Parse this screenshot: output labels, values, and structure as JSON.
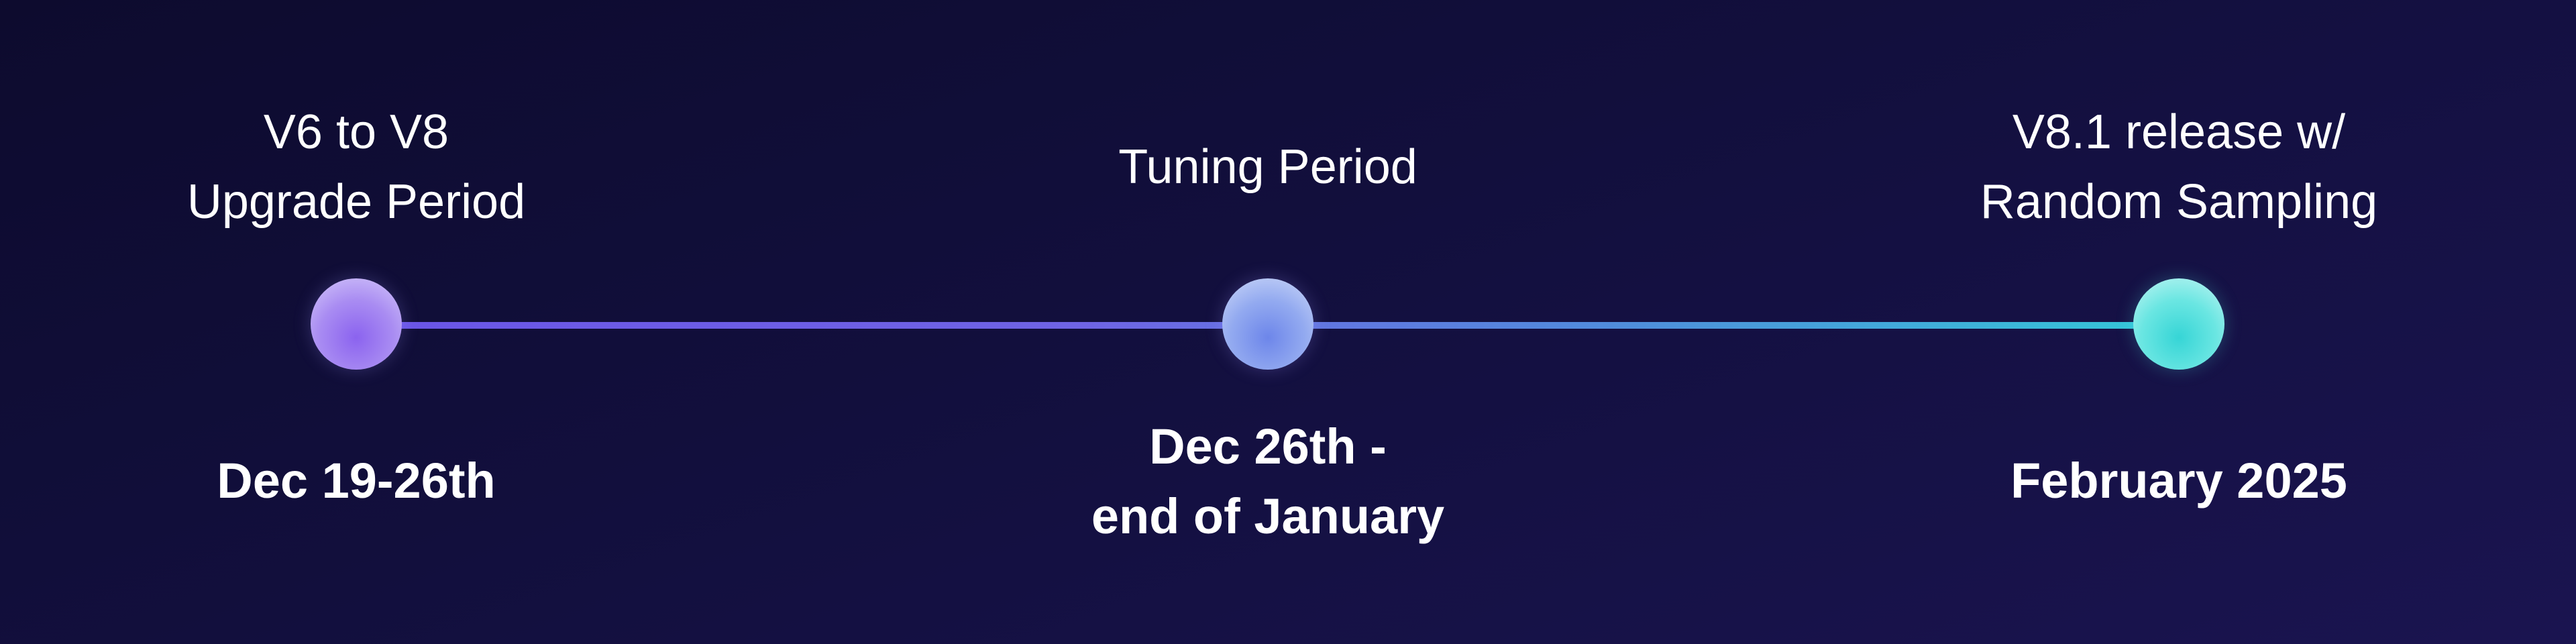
{
  "milestones": [
    {
      "title": "V6 to V8\nUpgrade Period",
      "date": "Dec 19-26th"
    },
    {
      "title": "Tuning Period",
      "date": "Dec 26th -\nend of January"
    },
    {
      "title": "V8.1 release w/\nRandom Sampling",
      "date": "February 2025"
    }
  ],
  "colors": {
    "background": "#120f3d",
    "node_1": "#8b63ef",
    "node_2": "#6d86ea",
    "node_3": "#36d5d6",
    "line_start": "#6a55e6",
    "line_end": "#33c8d8"
  }
}
